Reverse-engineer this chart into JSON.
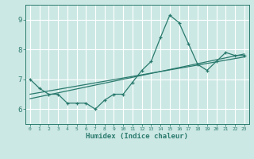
{
  "xlabel": "Humidex (Indice chaleur)",
  "ylabel": "",
  "background_color": "#cce8e4",
  "line_color": "#2a7a6e",
  "grid_color": "#ffffff",
  "xlim": [
    -0.5,
    23.5
  ],
  "ylim": [
    5.5,
    9.5
  ],
  "yticks": [
    6,
    7,
    8,
    9
  ],
  "xticks": [
    0,
    1,
    2,
    3,
    4,
    5,
    6,
    7,
    8,
    9,
    10,
    11,
    12,
    13,
    14,
    15,
    16,
    17,
    18,
    19,
    20,
    21,
    22,
    23
  ],
  "curve1_x": [
    0,
    1,
    2,
    3,
    4,
    5,
    6,
    7,
    8,
    9,
    10,
    11,
    12,
    13,
    14,
    15,
    16,
    17,
    18,
    19,
    20,
    21,
    22,
    23
  ],
  "curve1_y": [
    7.0,
    6.7,
    6.5,
    6.5,
    6.2,
    6.2,
    6.2,
    6.0,
    6.3,
    6.5,
    6.5,
    6.9,
    7.3,
    7.6,
    8.4,
    9.15,
    8.9,
    8.2,
    7.5,
    7.3,
    7.6,
    7.9,
    7.8,
    7.8
  ],
  "trend_x": [
    0,
    23
  ],
  "trend_y": [
    6.5,
    7.75
  ],
  "trend2_x": [
    0,
    23
  ],
  "trend2_y": [
    6.35,
    7.85
  ]
}
